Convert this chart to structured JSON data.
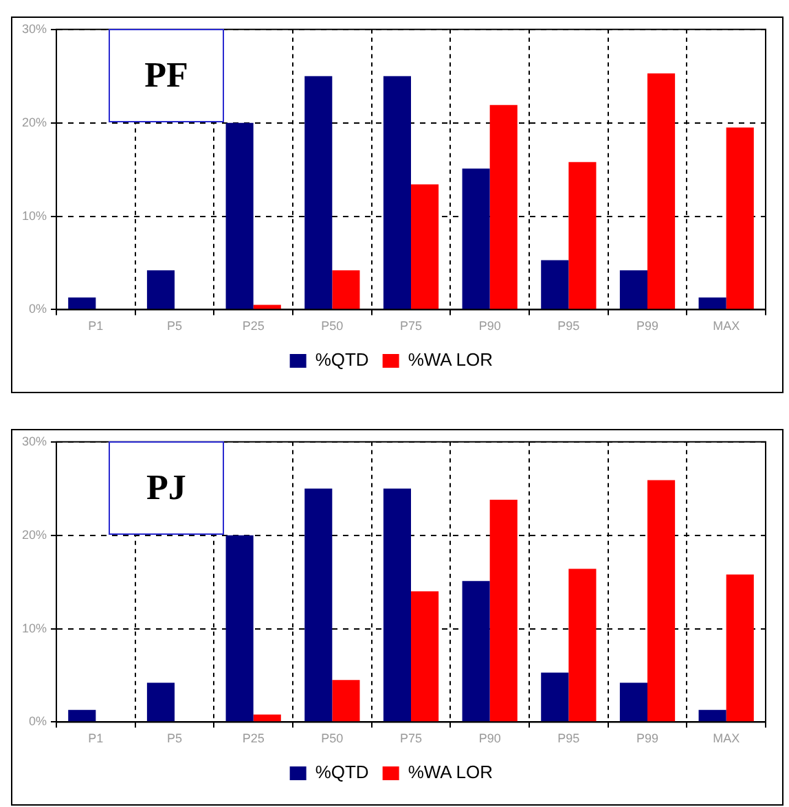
{
  "chart_data": [
    {
      "type": "bar",
      "title": "PF",
      "categories": [
        "P1",
        "P5",
        "P25",
        "P50",
        "P75",
        "P90",
        "P95",
        "P99",
        "MAX"
      ],
      "series": [
        {
          "name": "%QTD",
          "color": "#000080",
          "values": [
            1.3,
            4.2,
            20,
            25,
            25,
            15.1,
            5.3,
            4.2,
            1.3
          ]
        },
        {
          "name": "%WA LOR",
          "color": "#ff0000",
          "values": [
            0,
            0,
            0.5,
            4.2,
            13.4,
            21.9,
            15.8,
            25.3,
            19.5
          ]
        }
      ],
      "ylim": [
        0,
        30
      ],
      "yticks": [
        {
          "value": 0,
          "label": "0%"
        },
        {
          "value": 10,
          "label": "10%"
        },
        {
          "value": 20,
          "label": "20%"
        },
        {
          "value": 30,
          "label": "30%"
        }
      ],
      "grid": true,
      "legend": "bottom"
    },
    {
      "type": "bar",
      "title": "PJ",
      "categories": [
        "P1",
        "P5",
        "P25",
        "P50",
        "P75",
        "P90",
        "P95",
        "P99",
        "MAX"
      ],
      "series": [
        {
          "name": "%QTD",
          "color": "#000080",
          "values": [
            1.3,
            4.2,
            20,
            25,
            25,
            15.1,
            5.3,
            4.2,
            1.3
          ]
        },
        {
          "name": "%WA LOR",
          "color": "#ff0000",
          "values": [
            0,
            0,
            0.8,
            4.5,
            14,
            23.8,
            16.4,
            25.9,
            15.8
          ]
        }
      ],
      "ylim": [
        0,
        30
      ],
      "yticks": [
        {
          "value": 0,
          "label": "0%"
        },
        {
          "value": 10,
          "label": "10%"
        },
        {
          "value": 20,
          "label": "20%"
        },
        {
          "value": 30,
          "label": "30%"
        }
      ],
      "grid": true,
      "legend": "bottom"
    }
  ]
}
